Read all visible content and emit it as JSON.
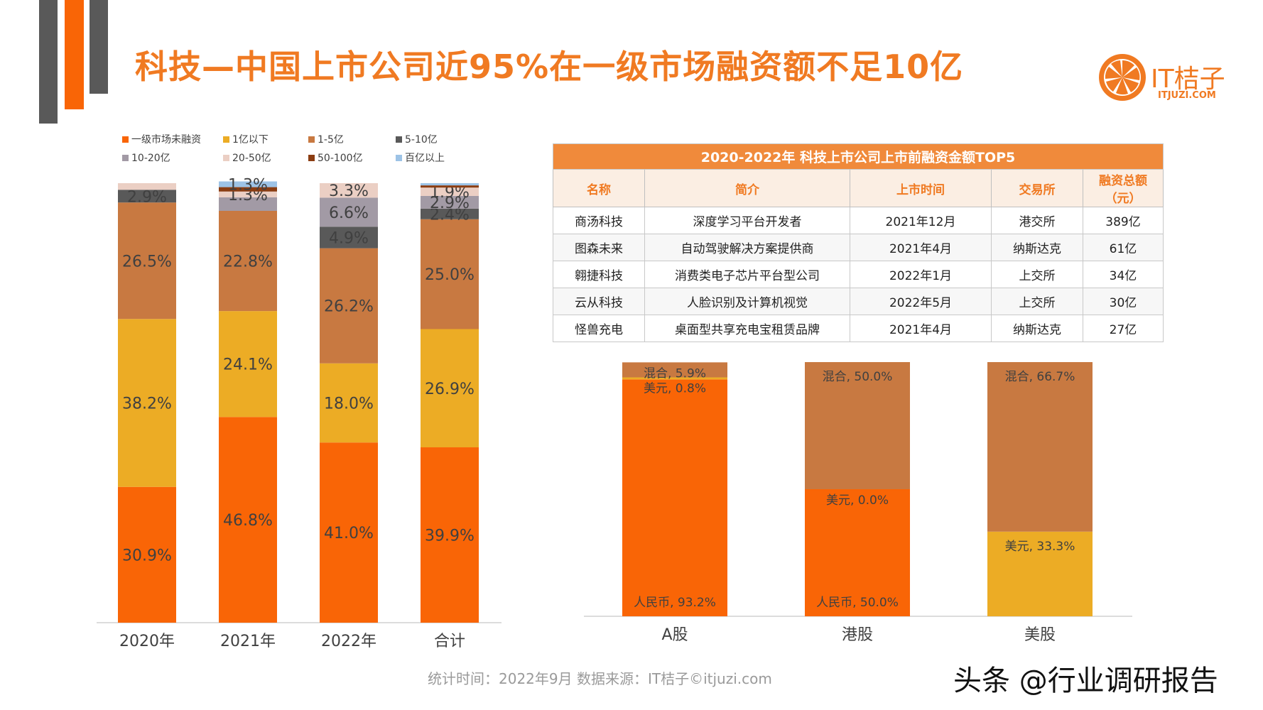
{
  "title": "科技—中国上市公司近95%在一级市场融资额不足10亿",
  "logo": {
    "text": "IT桔子",
    "url": "ITJUZI.COM"
  },
  "colors": {
    "primary_orange": "#f96506",
    "brand_orange": "#f07a22",
    "yellow": "#ecac25",
    "brown": "#c87941",
    "dark_gray": "#595959",
    "mauve": "#a29aa5",
    "light_pink": "#ebcfc4",
    "dark_brown": "#8b3d12",
    "light_blue": "#9dc3e6",
    "deco_gray": "#595959"
  },
  "table": {
    "caption": "2020-2022年 科技上市公司上市前融资金额TOP5",
    "headers": [
      "名称",
      "简介",
      "上市时间",
      "交易所",
      "融资总额（元）"
    ],
    "rows": [
      [
        "商汤科技",
        "深度学习平台开发者",
        "2021年12月",
        "港交所",
        "389亿"
      ],
      [
        "图森未来",
        "自动驾驶解决方案提供商",
        "2021年4月",
        "纳斯达克",
        "61亿"
      ],
      [
        "翱捷科技",
        "消费类电子芯片平台型公司",
        "2022年1月",
        "上交所",
        "34亿"
      ],
      [
        "云从科技",
        "人脸识别及计算机视觉",
        "2022年5月",
        "上交所",
        "30亿"
      ],
      [
        "怪兽充电",
        "桌面型共享充电宝租赁品牌",
        "2021年4月",
        "纳斯达克",
        "27亿"
      ]
    ]
  },
  "footer": "统计时间：2022年9月   数据来源：IT桔子©itjuzi.com",
  "watermark": "头条 @行业调研报告",
  "chart_data": [
    {
      "type": "bar",
      "stacked": true,
      "percent": true,
      "categories": [
        "2020年",
        "2021年",
        "2022年",
        "合计"
      ],
      "legend_position": "top",
      "series": [
        {
          "name": "一级市场未融资",
          "color": "#f96506",
          "values": [
            30.9,
            46.8,
            41.0,
            39.9
          ],
          "labels": [
            "30.9%",
            "46.8%",
            "41.0%",
            "39.9%"
          ]
        },
        {
          "name": "1亿以下",
          "color": "#ecac25",
          "values": [
            38.2,
            24.1,
            18.0,
            26.9
          ],
          "labels": [
            "38.2%",
            "24.1%",
            "18.0%",
            "26.9%"
          ]
        },
        {
          "name": "1-5亿",
          "color": "#c87941",
          "values": [
            26.5,
            22.8,
            26.2,
            25.0
          ],
          "labels": [
            "26.5%",
            "22.8%",
            "26.2%",
            "25.0%"
          ]
        },
        {
          "name": "5-10亿",
          "color": "#595959",
          "values": [
            2.9,
            0,
            4.9,
            2.4
          ],
          "labels": [
            "2.9%",
            "",
            "4.9%",
            "2.4%"
          ]
        },
        {
          "name": "10-20亿",
          "color": "#a29aa5",
          "values": [
            0,
            3.1,
            6.6,
            2.9
          ],
          "labels": [
            "",
            "",
            "6.6%",
            "2.9%"
          ]
        },
        {
          "name": "20-50亿",
          "color": "#ebcfc4",
          "values": [
            1.5,
            1.3,
            3.3,
            1.9
          ],
          "labels": [
            "",
            "1.3%",
            "3.3%",
            "1.9%"
          ]
        },
        {
          "name": "50-100亿",
          "color": "#8b3d12",
          "values": [
            0,
            1.0,
            0,
            0.5
          ],
          "labels": [
            "",
            "",
            "",
            ""
          ]
        },
        {
          "name": "百亿以上",
          "color": "#9dc3e6",
          "values": [
            0,
            1.3,
            0,
            0.5
          ],
          "labels": [
            "",
            "1.3%",
            "",
            ""
          ]
        }
      ]
    },
    {
      "type": "bar",
      "stacked": true,
      "percent": true,
      "categories": [
        "A股",
        "港股",
        "美股"
      ],
      "series": [
        {
          "name": "人民币",
          "color": "#f96506",
          "values": [
            93.2,
            50.0,
            0
          ],
          "labels": [
            "人民币, 93.2%",
            "人民币, 50.0%",
            ""
          ]
        },
        {
          "name": "美元",
          "color": "#ecac25",
          "values": [
            0.8,
            0.0,
            33.3
          ],
          "labels": [
            "美元, 0.8%",
            "美元, 0.0%",
            "美元, 33.3%"
          ]
        },
        {
          "name": "混合",
          "color": "#c87941",
          "values": [
            5.9,
            50.0,
            66.7
          ],
          "labels": [
            "混合, 5.9%",
            "混合, 50.0%",
            "混合, 66.7%"
          ]
        }
      ]
    }
  ]
}
